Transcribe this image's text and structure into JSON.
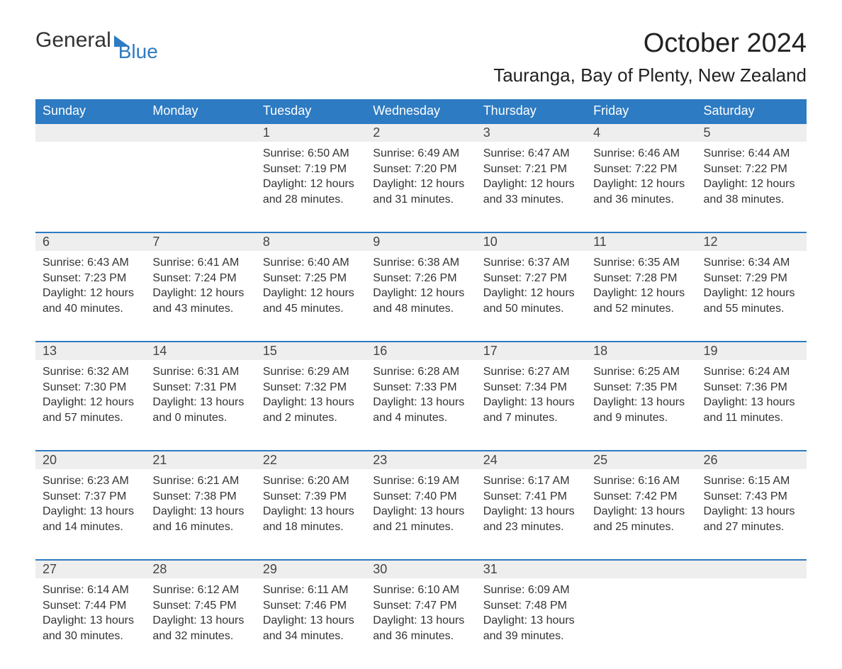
{
  "brand": {
    "part1": "General",
    "part2": "Blue"
  },
  "title": "October 2024",
  "location": "Tauranga, Bay of Plenty, New Zealand",
  "colors": {
    "accent": "#2d7bc2",
    "header_text": "#ffffff",
    "daynum_bg": "#eeeeee",
    "body_text": "#333333",
    "background": "#ffffff"
  },
  "typography": {
    "title_fontsize": 38,
    "location_fontsize": 26,
    "dayheader_fontsize": 18,
    "daynum_fontsize": 18,
    "cell_fontsize": 16
  },
  "day_headers": [
    "Sunday",
    "Monday",
    "Tuesday",
    "Wednesday",
    "Thursday",
    "Friday",
    "Saturday"
  ],
  "weeks": [
    [
      null,
      null,
      {
        "n": "1",
        "sr": "6:50 AM",
        "ss": "7:19 PM",
        "dh": 12,
        "dm": 28
      },
      {
        "n": "2",
        "sr": "6:49 AM",
        "ss": "7:20 PM",
        "dh": 12,
        "dm": 31
      },
      {
        "n": "3",
        "sr": "6:47 AM",
        "ss": "7:21 PM",
        "dh": 12,
        "dm": 33
      },
      {
        "n": "4",
        "sr": "6:46 AM",
        "ss": "7:22 PM",
        "dh": 12,
        "dm": 36
      },
      {
        "n": "5",
        "sr": "6:44 AM",
        "ss": "7:22 PM",
        "dh": 12,
        "dm": 38
      }
    ],
    [
      {
        "n": "6",
        "sr": "6:43 AM",
        "ss": "7:23 PM",
        "dh": 12,
        "dm": 40
      },
      {
        "n": "7",
        "sr": "6:41 AM",
        "ss": "7:24 PM",
        "dh": 12,
        "dm": 43
      },
      {
        "n": "8",
        "sr": "6:40 AM",
        "ss": "7:25 PM",
        "dh": 12,
        "dm": 45
      },
      {
        "n": "9",
        "sr": "6:38 AM",
        "ss": "7:26 PM",
        "dh": 12,
        "dm": 48
      },
      {
        "n": "10",
        "sr": "6:37 AM",
        "ss": "7:27 PM",
        "dh": 12,
        "dm": 50
      },
      {
        "n": "11",
        "sr": "6:35 AM",
        "ss": "7:28 PM",
        "dh": 12,
        "dm": 52
      },
      {
        "n": "12",
        "sr": "6:34 AM",
        "ss": "7:29 PM",
        "dh": 12,
        "dm": 55
      }
    ],
    [
      {
        "n": "13",
        "sr": "6:32 AM",
        "ss": "7:30 PM",
        "dh": 12,
        "dm": 57
      },
      {
        "n": "14",
        "sr": "6:31 AM",
        "ss": "7:31 PM",
        "dh": 13,
        "dm": 0
      },
      {
        "n": "15",
        "sr": "6:29 AM",
        "ss": "7:32 PM",
        "dh": 13,
        "dm": 2
      },
      {
        "n": "16",
        "sr": "6:28 AM",
        "ss": "7:33 PM",
        "dh": 13,
        "dm": 4
      },
      {
        "n": "17",
        "sr": "6:27 AM",
        "ss": "7:34 PM",
        "dh": 13,
        "dm": 7
      },
      {
        "n": "18",
        "sr": "6:25 AM",
        "ss": "7:35 PM",
        "dh": 13,
        "dm": 9
      },
      {
        "n": "19",
        "sr": "6:24 AM",
        "ss": "7:36 PM",
        "dh": 13,
        "dm": 11
      }
    ],
    [
      {
        "n": "20",
        "sr": "6:23 AM",
        "ss": "7:37 PM",
        "dh": 13,
        "dm": 14
      },
      {
        "n": "21",
        "sr": "6:21 AM",
        "ss": "7:38 PM",
        "dh": 13,
        "dm": 16
      },
      {
        "n": "22",
        "sr": "6:20 AM",
        "ss": "7:39 PM",
        "dh": 13,
        "dm": 18
      },
      {
        "n": "23",
        "sr": "6:19 AM",
        "ss": "7:40 PM",
        "dh": 13,
        "dm": 21
      },
      {
        "n": "24",
        "sr": "6:17 AM",
        "ss": "7:41 PM",
        "dh": 13,
        "dm": 23
      },
      {
        "n": "25",
        "sr": "6:16 AM",
        "ss": "7:42 PM",
        "dh": 13,
        "dm": 25
      },
      {
        "n": "26",
        "sr": "6:15 AM",
        "ss": "7:43 PM",
        "dh": 13,
        "dm": 27
      }
    ],
    [
      {
        "n": "27",
        "sr": "6:14 AM",
        "ss": "7:44 PM",
        "dh": 13,
        "dm": 30
      },
      {
        "n": "28",
        "sr": "6:12 AM",
        "ss": "7:45 PM",
        "dh": 13,
        "dm": 32
      },
      {
        "n": "29",
        "sr": "6:11 AM",
        "ss": "7:46 PM",
        "dh": 13,
        "dm": 34
      },
      {
        "n": "30",
        "sr": "6:10 AM",
        "ss": "7:47 PM",
        "dh": 13,
        "dm": 36
      },
      {
        "n": "31",
        "sr": "6:09 AM",
        "ss": "7:48 PM",
        "dh": 13,
        "dm": 39
      },
      null,
      null
    ]
  ],
  "labels": {
    "sunrise_prefix": "Sunrise: ",
    "sunset_prefix": "Sunset: ",
    "daylight_prefix": "Daylight: ",
    "hours_word": " hours",
    "and_word": "and ",
    "minutes_word": " minutes."
  }
}
